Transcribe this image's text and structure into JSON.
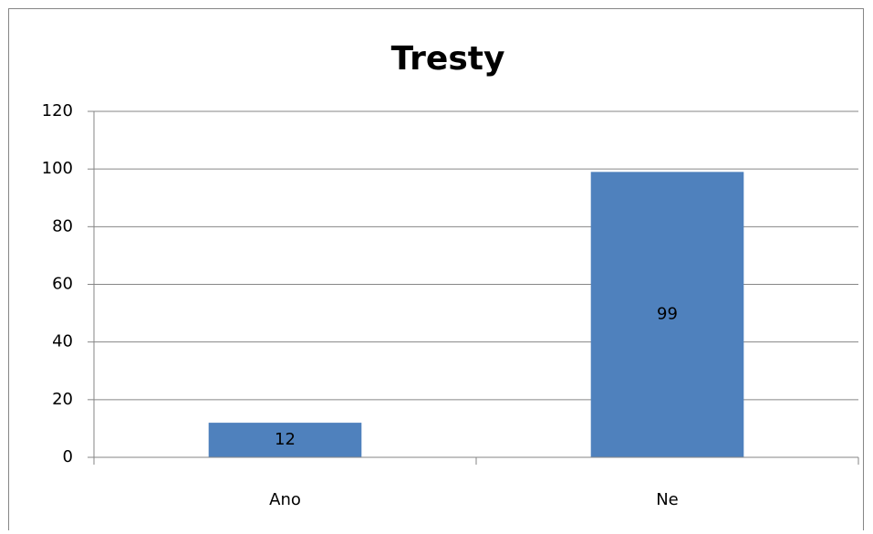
{
  "chart_data": {
    "type": "bar",
    "title": "Tresty",
    "categories": [
      "Ano",
      "Ne"
    ],
    "values": [
      12,
      99
    ],
    "color": "#4f81bd",
    "ylim": [
      0,
      120
    ],
    "yticks": [
      0,
      20,
      40,
      60,
      80,
      100,
      120
    ],
    "grid": true
  }
}
